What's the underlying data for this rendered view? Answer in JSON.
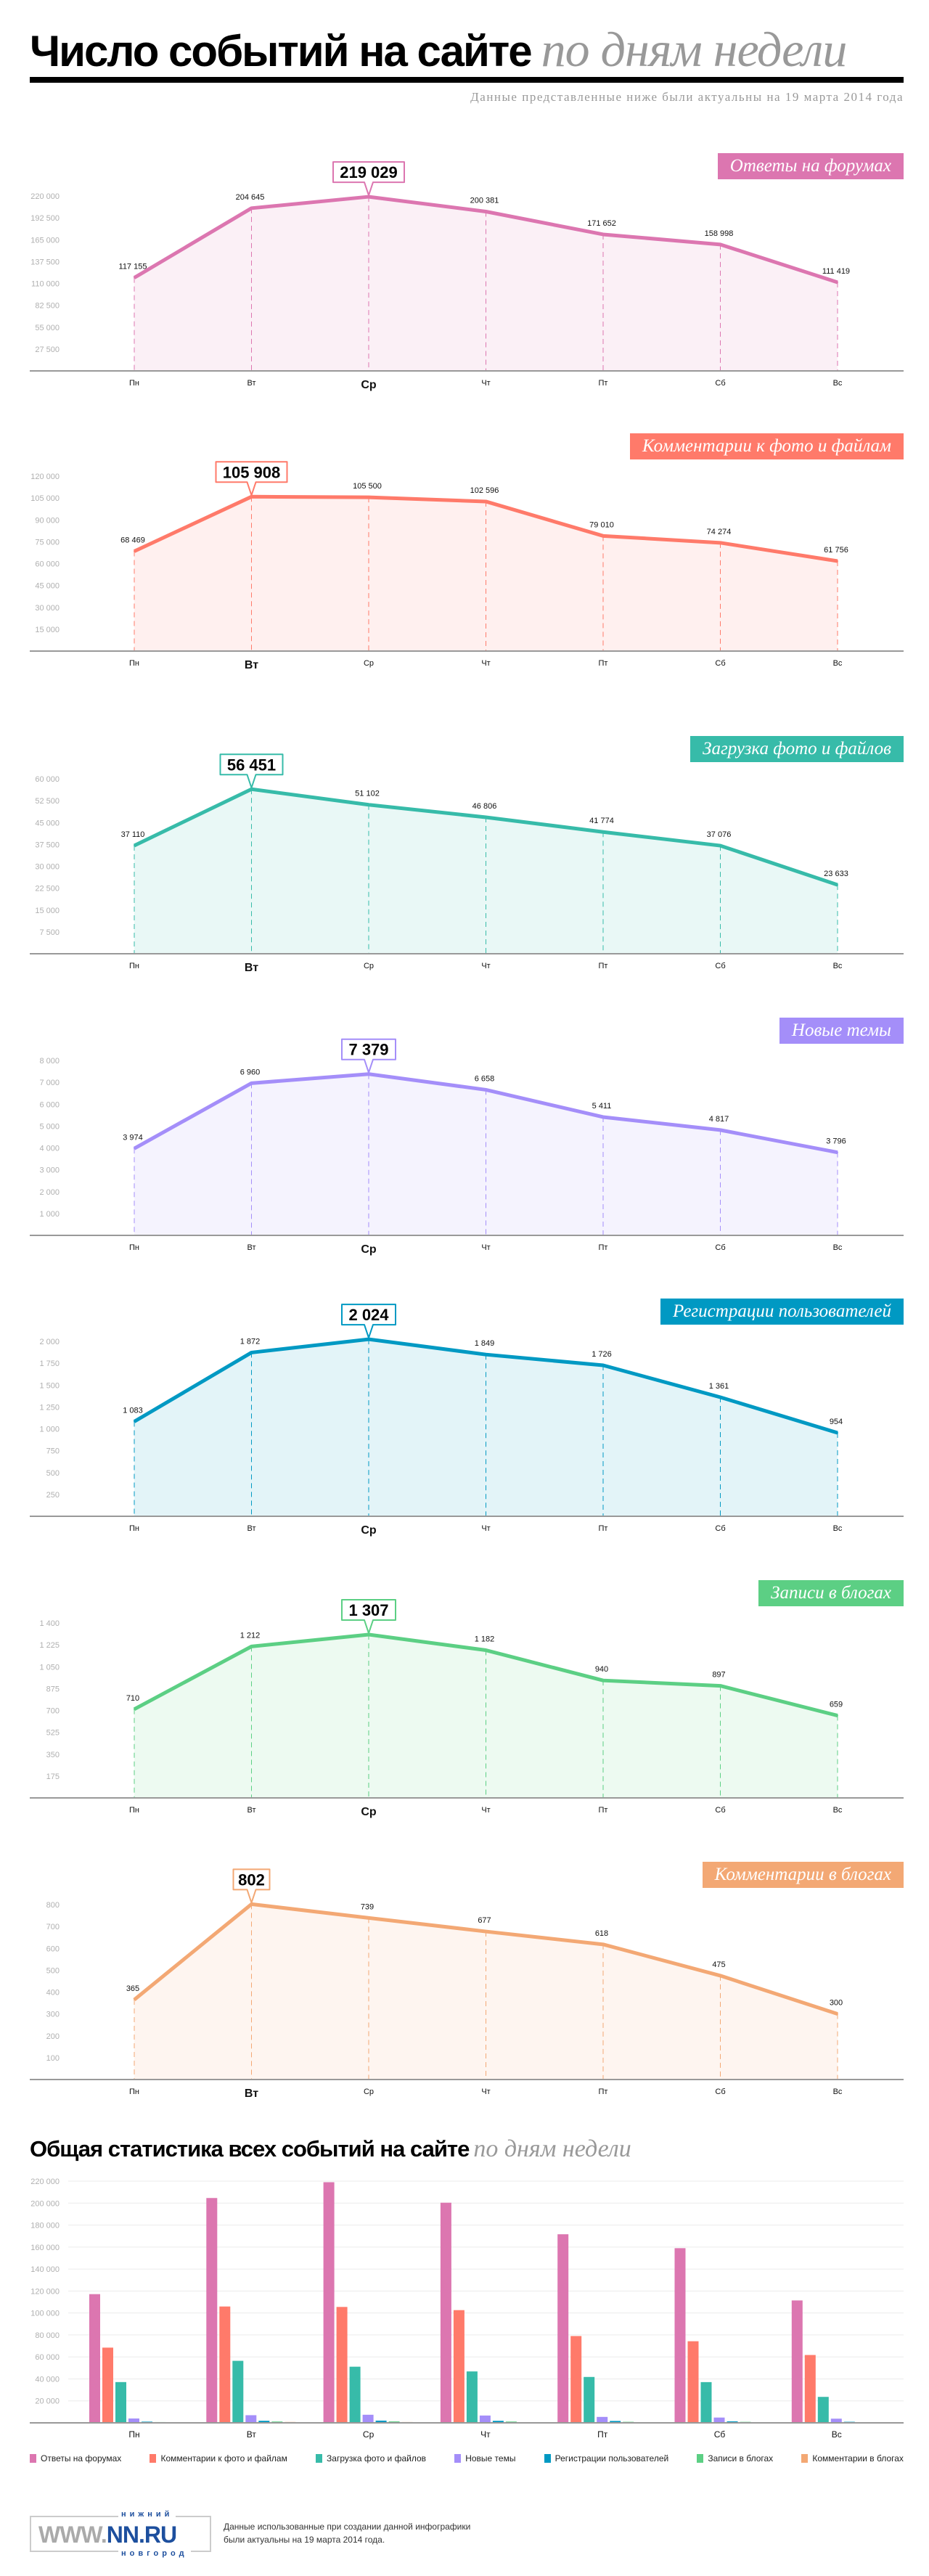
{
  "header": {
    "title_bold": "Число событий на сайте",
    "title_italic": "по дням недели",
    "subtitle": "Данные представленные ниже были актуальны на 19 марта 2014 года"
  },
  "days": [
    "Пн",
    "Вт",
    "Ср",
    "Чт",
    "Пт",
    "Сб",
    "Вс"
  ],
  "chart_data": [
    {
      "type": "area",
      "name": "Ответы на форумах",
      "color": "#dc76b0",
      "categories": [
        "Пн",
        "Вт",
        "Ср",
        "Чт",
        "Пт",
        "Сб",
        "Вс"
      ],
      "values": [
        117155,
        204645,
        219029,
        200381,
        171652,
        158998,
        111419
      ],
      "ylim": [
        0,
        220000
      ],
      "yticks": [
        27500,
        55000,
        82500,
        110000,
        137500,
        165000,
        192500,
        220000
      ]
    },
    {
      "type": "area",
      "name": "Комментарии к фото и файлам",
      "color": "#ff7a6a",
      "categories": [
        "Пн",
        "Вт",
        "Ср",
        "Чт",
        "Пт",
        "Сб",
        "Вс"
      ],
      "values": [
        68469,
        105908,
        105500,
        102596,
        79010,
        74274,
        61756
      ],
      "ylim": [
        0,
        120000
      ],
      "yticks": [
        15000,
        30000,
        45000,
        60000,
        75000,
        90000,
        105000,
        120000
      ]
    },
    {
      "type": "area",
      "name": "Загрузка фото и файлов",
      "color": "#37bba9",
      "categories": [
        "Пн",
        "Вт",
        "Ср",
        "Чт",
        "Пт",
        "Сб",
        "Вс"
      ],
      "values": [
        37110,
        56451,
        51102,
        46806,
        41774,
        37076,
        23633
      ],
      "ylim": [
        0,
        60000
      ],
      "yticks": [
        7500,
        15000,
        22500,
        30000,
        37500,
        45000,
        52500,
        60000
      ]
    },
    {
      "type": "area",
      "name": "Новые темы",
      "color": "#a48ef9",
      "categories": [
        "Пн",
        "Вт",
        "Ср",
        "Чт",
        "Пт",
        "Сб",
        "Вс"
      ],
      "values": [
        3974,
        6960,
        7379,
        6658,
        5411,
        4817,
        3796
      ],
      "ylim": [
        0,
        8000
      ],
      "yticks": [
        1000,
        2000,
        3000,
        4000,
        5000,
        6000,
        7000,
        8000
      ]
    },
    {
      "type": "area",
      "name": "Регистрации пользователей",
      "color": "#0099c3",
      "categories": [
        "Пн",
        "Вт",
        "Ср",
        "Чт",
        "Пт",
        "Сб",
        "Вс"
      ],
      "values": [
        1083,
        1872,
        2024,
        1849,
        1726,
        1361,
        954
      ],
      "ylim": [
        0,
        2000
      ],
      "yticks": [
        250,
        500,
        750,
        1000,
        1250,
        1500,
        1750,
        2000
      ]
    },
    {
      "type": "area",
      "name": "Записи в блогах",
      "color": "#5ccf84",
      "categories": [
        "Пн",
        "Вт",
        "Ср",
        "Чт",
        "Пт",
        "Сб",
        "Вс"
      ],
      "values": [
        710,
        1212,
        1307,
        1182,
        940,
        897,
        659
      ],
      "ylim": [
        0,
        1400
      ],
      "yticks": [
        175,
        350,
        525,
        700,
        875,
        1050,
        1225,
        1400
      ]
    },
    {
      "type": "area",
      "name": "Комментарии в блогах",
      "color": "#f3a874",
      "categories": [
        "Пн",
        "Вт",
        "Ср",
        "Чт",
        "Пт",
        "Сб",
        "Вс"
      ],
      "values": [
        365,
        802,
        739,
        677,
        618,
        475,
        300
      ],
      "ylim": [
        0,
        800
      ],
      "yticks": [
        100,
        200,
        300,
        400,
        500,
        600,
        700,
        800
      ]
    },
    {
      "type": "bar",
      "title_bold": "Общая статистика всех событий на сайте",
      "title_italic": "по дням недели",
      "categories": [
        "Пн",
        "Вт",
        "Ср",
        "Чт",
        "Пт",
        "Сб",
        "Вс"
      ],
      "ylim": [
        0,
        220000
      ],
      "yticks": [
        20000,
        40000,
        60000,
        80000,
        100000,
        120000,
        140000,
        160000,
        180000,
        200000,
        220000
      ],
      "grid": true,
      "legend": "bottom",
      "series": [
        {
          "name": "Ответы на форумах",
          "color": "#dc76b0",
          "values": [
            117155,
            204645,
            219029,
            200381,
            171652,
            158998,
            111419
          ]
        },
        {
          "name": "Комментарии к фото и файлам",
          "color": "#ff7a6a",
          "values": [
            68469,
            105908,
            105500,
            102596,
            79010,
            74274,
            61756
          ]
        },
        {
          "name": "Загрузка фото и файлов",
          "color": "#37bba9",
          "values": [
            37110,
            56451,
            51102,
            46806,
            41774,
            37076,
            23633
          ]
        },
        {
          "name": "Новые темы",
          "color": "#a48ef9",
          "values": [
            3974,
            6960,
            7379,
            6658,
            5411,
            4817,
            3796
          ]
        },
        {
          "name": "Регистрации пользователей",
          "color": "#0099c3",
          "values": [
            1083,
            1872,
            2024,
            1849,
            1726,
            1361,
            954
          ]
        },
        {
          "name": "Записи в блогах",
          "color": "#5ccf84",
          "values": [
            710,
            1212,
            1307,
            1182,
            940,
            897,
            659
          ]
        },
        {
          "name": "Комментарии в блогах",
          "color": "#f3a874",
          "values": [
            365,
            802,
            739,
            677,
            618,
            475,
            300
          ]
        }
      ]
    }
  ],
  "footer": {
    "logo_text": "WWW.NN.RU нижний новгород",
    "note_line1": "Данные использованные при создании данной инфографики",
    "note_line2": "были актуальны на 19 марта 2014 года."
  }
}
